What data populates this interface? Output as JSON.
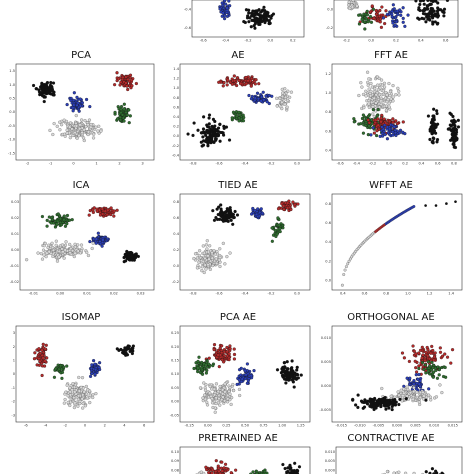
{
  "chart_data": [
    {
      "id": "top-mid",
      "title": "",
      "type": "scatter",
      "xticks": [
        "-0.6",
        "-0.4",
        "-0.2",
        "0.0",
        "0.2"
      ],
      "yticks": [
        "-0.4",
        "-0.6"
      ],
      "clusters": [
        {
          "cls": "blue",
          "cx": 0.3,
          "cy": 0.25,
          "sx": 0.05,
          "sy": 0.25,
          "n": 40
        },
        {
          "cls": "black",
          "cx": 0.6,
          "cy": 0.45,
          "sx": 0.12,
          "sy": 0.25,
          "n": 90
        }
      ]
    },
    {
      "id": "top-right",
      "title": "",
      "type": "scatter",
      "xticks": [
        "-0.2",
        "0.0",
        "0.2",
        "0.4",
        "0.6"
      ],
      "yticks": [
        "0.0",
        "-0.2"
      ],
      "clusters": [
        {
          "cls": "gray",
          "cx": 0.15,
          "cy": 0.15,
          "sx": 0.06,
          "sy": 0.15,
          "n": 25
        },
        {
          "cls": "red",
          "cx": 0.35,
          "cy": 0.45,
          "sx": 0.08,
          "sy": 0.25,
          "n": 40
        },
        {
          "cls": "green",
          "cx": 0.25,
          "cy": 0.5,
          "sx": 0.05,
          "sy": 0.25,
          "n": 25
        },
        {
          "cls": "blue",
          "cx": 0.5,
          "cy": 0.45,
          "sx": 0.07,
          "sy": 0.3,
          "n": 40
        },
        {
          "cls": "black",
          "cx": 0.78,
          "cy": 0.3,
          "sx": 0.12,
          "sy": 0.3,
          "n": 80
        }
      ]
    },
    {
      "id": "pca",
      "title": "PCA",
      "type": "scatter",
      "xticks": [
        "-2",
        "-1",
        "0",
        "1",
        "2",
        "3"
      ],
      "yticks": [
        "1.5",
        "1.0",
        "0.5",
        "0.0",
        "-0.5",
        "-1.0",
        "-1.5"
      ],
      "clusters": [
        {
          "cls": "black",
          "cx": 0.22,
          "cy": 0.26,
          "sx": 0.07,
          "sy": 0.08,
          "n": 90
        },
        {
          "cls": "red",
          "cx": 0.8,
          "cy": 0.18,
          "sx": 0.06,
          "sy": 0.07,
          "n": 60
        },
        {
          "cls": "blue",
          "cx": 0.44,
          "cy": 0.42,
          "sx": 0.06,
          "sy": 0.06,
          "n": 55
        },
        {
          "cls": "green",
          "cx": 0.77,
          "cy": 0.52,
          "sx": 0.05,
          "sy": 0.09,
          "n": 55
        },
        {
          "cls": "gray",
          "cx": 0.45,
          "cy": 0.68,
          "sx": 0.14,
          "sy": 0.1,
          "n": 170
        }
      ]
    },
    {
      "id": "ae",
      "title": "AE",
      "type": "scatter",
      "xticks": [
        "-0.8",
        "-0.6",
        "-0.4",
        "-0.2",
        "0.0"
      ],
      "yticks": [
        "1.4",
        "1.2",
        "1.0",
        "0.8",
        "0.6",
        "0.4",
        "0.2",
        "0.0",
        "-0.2",
        "-0.4"
      ],
      "clusters": [
        {
          "cls": "red",
          "cx": 0.45,
          "cy": 0.18,
          "sx": 0.14,
          "sy": 0.05,
          "n": 70
        },
        {
          "cls": "gray",
          "cx": 0.8,
          "cy": 0.35,
          "sx": 0.05,
          "sy": 0.12,
          "n": 50
        },
        {
          "cls": "blue",
          "cx": 0.62,
          "cy": 0.36,
          "sx": 0.08,
          "sy": 0.05,
          "n": 50
        },
        {
          "cls": "green",
          "cx": 0.45,
          "cy": 0.55,
          "sx": 0.05,
          "sy": 0.05,
          "n": 30
        },
        {
          "cls": "black",
          "cx": 0.25,
          "cy": 0.72,
          "sx": 0.1,
          "sy": 0.12,
          "n": 110
        }
      ]
    },
    {
      "id": "fft-ae",
      "title": "FFT AE",
      "type": "scatter",
      "xticks": [
        "-0.6",
        "-0.4",
        "-0.2",
        "0.0",
        "0.2",
        "0.4",
        "0.6",
        "0.8"
      ],
      "yticks": [
        "1.2",
        "1.0",
        "0.8",
        "0.6",
        "0.4"
      ],
      "clusters": [
        {
          "cls": "gray",
          "cx": 0.35,
          "cy": 0.35,
          "sx": 0.12,
          "sy": 0.18,
          "n": 160
        },
        {
          "cls": "green",
          "cx": 0.3,
          "cy": 0.6,
          "sx": 0.1,
          "sy": 0.1,
          "n": 70
        },
        {
          "cls": "red",
          "cx": 0.4,
          "cy": 0.62,
          "sx": 0.1,
          "sy": 0.08,
          "n": 70
        },
        {
          "cls": "blue",
          "cx": 0.45,
          "cy": 0.7,
          "sx": 0.1,
          "sy": 0.06,
          "n": 50
        },
        {
          "cls": "black",
          "cx": 0.78,
          "cy": 0.68,
          "sx": 0.03,
          "sy": 0.18,
          "n": 55
        },
        {
          "cls": "black",
          "cx": 0.93,
          "cy": 0.68,
          "sx": 0.03,
          "sy": 0.18,
          "n": 55
        }
      ]
    },
    {
      "id": "ica",
      "title": "ICA",
      "type": "scatter",
      "xticks": [
        "-0.01",
        "0.00",
        "0.01",
        "0.02",
        "0.03"
      ],
      "yticks": [
        "0.03",
        "0.02",
        "0.01",
        "0.00",
        "-0.01",
        "-0.02"
      ],
      "clusters": [
        {
          "cls": "red",
          "cx": 0.62,
          "cy": 0.18,
          "sx": 0.08,
          "sy": 0.05,
          "n": 60
        },
        {
          "cls": "green",
          "cx": 0.3,
          "cy": 0.28,
          "sx": 0.08,
          "sy": 0.06,
          "n": 60
        },
        {
          "cls": "blue",
          "cx": 0.6,
          "cy": 0.48,
          "sx": 0.06,
          "sy": 0.06,
          "n": 55
        },
        {
          "cls": "gray",
          "cx": 0.32,
          "cy": 0.6,
          "sx": 0.16,
          "sy": 0.08,
          "n": 170
        },
        {
          "cls": "black",
          "cx": 0.82,
          "cy": 0.65,
          "sx": 0.06,
          "sy": 0.05,
          "n": 60
        }
      ]
    },
    {
      "id": "tied-ae",
      "title": "TIED AE",
      "type": "scatter",
      "xticks": [
        "-0.8",
        "-0.6",
        "-0.4",
        "-0.2",
        "0.0"
      ],
      "yticks": [
        "0.8",
        "0.6",
        "0.4",
        "0.2",
        "0.0",
        "-0.2"
      ],
      "clusters": [
        {
          "cls": "black",
          "cx": 0.35,
          "cy": 0.22,
          "sx": 0.07,
          "sy": 0.07,
          "n": 70
        },
        {
          "cls": "blue",
          "cx": 0.6,
          "cy": 0.2,
          "sx": 0.04,
          "sy": 0.06,
          "n": 35
        },
        {
          "cls": "red",
          "cx": 0.82,
          "cy": 0.12,
          "sx": 0.07,
          "sy": 0.05,
          "n": 45
        },
        {
          "cls": "green",
          "cx": 0.75,
          "cy": 0.35,
          "sx": 0.04,
          "sy": 0.08,
          "n": 35
        },
        {
          "cls": "gray",
          "cx": 0.22,
          "cy": 0.68,
          "sx": 0.1,
          "sy": 0.13,
          "n": 130
        }
      ]
    },
    {
      "id": "wfft-ae",
      "title": "WFFT AE",
      "type": "curve",
      "xticks": [
        "0.4",
        "0.6",
        "0.8",
        "1.0",
        "1.2",
        "1.4"
      ],
      "yticks": [
        "0.8",
        "0.6",
        "0.4",
        "0.2",
        "0.0"
      ],
      "clusters": []
    },
    {
      "id": "isomap",
      "title": "ISOMAP",
      "type": "scatter",
      "xticks": [
        "-6",
        "-4",
        "-2",
        "0",
        "2",
        "4",
        "6"
      ],
      "yticks": [
        "3",
        "2",
        "1",
        "0",
        "-1",
        "-2",
        "-3"
      ],
      "clusters": [
        {
          "cls": "red",
          "cx": 0.18,
          "cy": 0.3,
          "sx": 0.05,
          "sy": 0.12,
          "n": 55
        },
        {
          "cls": "green",
          "cx": 0.32,
          "cy": 0.45,
          "sx": 0.04,
          "sy": 0.08,
          "n": 30
        },
        {
          "cls": "blue",
          "cx": 0.57,
          "cy": 0.45,
          "sx": 0.03,
          "sy": 0.08,
          "n": 35
        },
        {
          "cls": "black",
          "cx": 0.8,
          "cy": 0.25,
          "sx": 0.06,
          "sy": 0.05,
          "n": 30
        },
        {
          "cls": "gray",
          "cx": 0.45,
          "cy": 0.72,
          "sx": 0.1,
          "sy": 0.12,
          "n": 140
        }
      ]
    },
    {
      "id": "pca-ae",
      "title": "PCA AE",
      "type": "scatter",
      "xticks": [
        "-0.25",
        "0.00",
        "0.25",
        "0.50",
        "0.75",
        "1.00",
        "1.25"
      ],
      "yticks": [
        "0.25",
        "0.20",
        "0.15",
        "0.10",
        "0.05",
        "0.00",
        "-0.05"
      ],
      "clusters": [
        {
          "cls": "red",
          "cx": 0.32,
          "cy": 0.3,
          "sx": 0.08,
          "sy": 0.1,
          "n": 70
        },
        {
          "cls": "green",
          "cx": 0.18,
          "cy": 0.42,
          "sx": 0.06,
          "sy": 0.08,
          "n": 55
        },
        {
          "cls": "blue",
          "cx": 0.5,
          "cy": 0.52,
          "sx": 0.06,
          "sy": 0.08,
          "n": 50
        },
        {
          "cls": "black",
          "cx": 0.85,
          "cy": 0.5,
          "sx": 0.07,
          "sy": 0.1,
          "n": 80
        },
        {
          "cls": "gray",
          "cx": 0.3,
          "cy": 0.7,
          "sx": 0.14,
          "sy": 0.12,
          "n": 160
        }
      ]
    },
    {
      "id": "orthogonal-ae",
      "title": "ORTHOGONAL AE",
      "type": "scatter",
      "xticks": [
        "-0.015",
        "-0.010",
        "-0.005",
        "0.000",
        "0.005",
        "0.010",
        "0.015"
      ],
      "yticks": [
        "0.010",
        "0.005",
        "0.000",
        "-0.005"
      ],
      "clusters": [
        {
          "cls": "red",
          "cx": 0.72,
          "cy": 0.35,
          "sx": 0.13,
          "sy": 0.12,
          "n": 90
        },
        {
          "cls": "green",
          "cx": 0.78,
          "cy": 0.45,
          "sx": 0.08,
          "sy": 0.08,
          "n": 50
        },
        {
          "cls": "blue",
          "cx": 0.65,
          "cy": 0.6,
          "sx": 0.08,
          "sy": 0.08,
          "n": 40
        },
        {
          "cls": "gray",
          "cx": 0.6,
          "cy": 0.72,
          "sx": 0.18,
          "sy": 0.07,
          "n": 110
        },
        {
          "cls": "black",
          "cx": 0.38,
          "cy": 0.8,
          "sx": 0.16,
          "sy": 0.06,
          "n": 120
        }
      ]
    },
    {
      "id": "pretrained-ae",
      "title": "PRETRAINED AE",
      "type": "scatter",
      "xticks": [],
      "yticks": [
        "0.10",
        "0.09",
        "0.08",
        "0.07"
      ],
      "clusters": [
        {
          "cls": "red",
          "cx": 0.3,
          "cy": 0.65,
          "sx": 0.1,
          "sy": 0.2,
          "n": 60
        },
        {
          "cls": "green",
          "cx": 0.6,
          "cy": 0.75,
          "sx": 0.08,
          "sy": 0.15,
          "n": 40
        },
        {
          "cls": "black",
          "cx": 0.85,
          "cy": 0.65,
          "sx": 0.06,
          "sy": 0.2,
          "n": 30
        },
        {
          "cls": "gray",
          "cx": 0.15,
          "cy": 0.8,
          "sx": 0.05,
          "sy": 0.1,
          "n": 20
        }
      ]
    },
    {
      "id": "contractive-ae",
      "title": "CONTRACTIVE AE",
      "type": "scatter",
      "xticks": [],
      "yticks": [
        "0.010",
        "0.005",
        "0.000",
        "-0.005"
      ],
      "clusters": [
        {
          "cls": "gray",
          "cx": 0.5,
          "cy": 0.8,
          "sx": 0.2,
          "sy": 0.15,
          "n": 40
        },
        {
          "cls": "black",
          "cx": 0.8,
          "cy": 0.75,
          "sx": 0.08,
          "sy": 0.15,
          "n": 30
        }
      ]
    }
  ],
  "colors": {
    "black": "#111111",
    "red": "#b52a2a",
    "green": "#2f6e2f",
    "blue": "#2b3fb8",
    "gray": "#d8d8d8"
  }
}
